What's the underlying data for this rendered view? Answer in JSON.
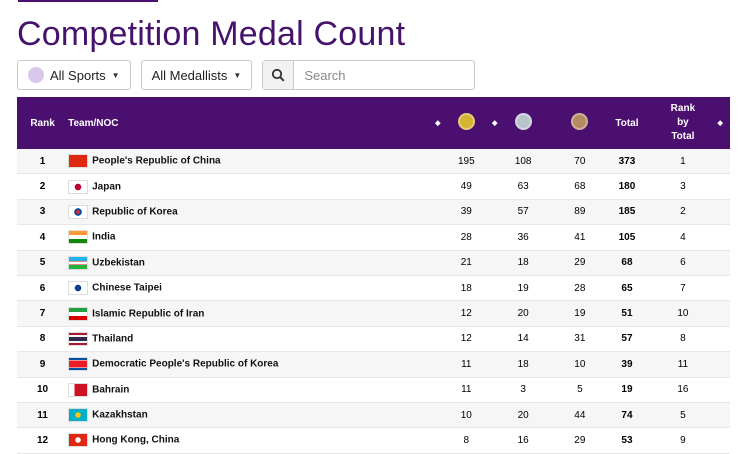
{
  "page": {
    "title": "Competition Medal Count"
  },
  "filters": {
    "sports_label": "All Sports",
    "medallists_label": "All Medallists",
    "search_placeholder": "Search"
  },
  "table": {
    "headers": {
      "rank": "Rank",
      "team": "Team/NOC",
      "total": "Total",
      "rank_by_total": [
        "Rank",
        "by",
        "Total"
      ]
    },
    "medal_colors": {
      "gold": "#d4b432",
      "silver": "#b9c3cc",
      "bronze": "#b48a63"
    },
    "header_bg": "#4a0f6f",
    "rows": [
      {
        "rank": "1",
        "team": "People's Republic of China",
        "flag": "china-flag-icon",
        "gold": "195",
        "silver": "108",
        "bronze": "70",
        "total": "373",
        "rank_by_total": "1"
      },
      {
        "rank": "2",
        "team": "Japan",
        "flag": "japan-flag-icon",
        "gold": "49",
        "silver": "63",
        "bronze": "68",
        "total": "180",
        "rank_by_total": "3"
      },
      {
        "rank": "3",
        "team": "Republic of Korea",
        "flag": "korea-flag-icon",
        "gold": "39",
        "silver": "57",
        "bronze": "89",
        "total": "185",
        "rank_by_total": "2"
      },
      {
        "rank": "4",
        "team": "India",
        "flag": "india-flag-icon",
        "gold": "28",
        "silver": "36",
        "bronze": "41",
        "total": "105",
        "rank_by_total": "4"
      },
      {
        "rank": "5",
        "team": "Uzbekistan",
        "flag": "uzbekistan-flag-icon",
        "gold": "21",
        "silver": "18",
        "bronze": "29",
        "total": "68",
        "rank_by_total": "6"
      },
      {
        "rank": "6",
        "team": "Chinese Taipei",
        "flag": "chinese-taipei-flag-icon",
        "gold": "18",
        "silver": "19",
        "bronze": "28",
        "total": "65",
        "rank_by_total": "7"
      },
      {
        "rank": "7",
        "team": "Islamic Republic of Iran",
        "flag": "iran-flag-icon",
        "gold": "12",
        "silver": "20",
        "bronze": "19",
        "total": "51",
        "rank_by_total": "10"
      },
      {
        "rank": "8",
        "team": "Thailand",
        "flag": "thailand-flag-icon",
        "gold": "12",
        "silver": "14",
        "bronze": "31",
        "total": "57",
        "rank_by_total": "8"
      },
      {
        "rank": "9",
        "team": "Democratic People's Republic of Korea",
        "flag": "dprk-flag-icon",
        "gold": "11",
        "silver": "18",
        "bronze": "10",
        "total": "39",
        "rank_by_total": "11"
      },
      {
        "rank": "10",
        "team": "Bahrain",
        "flag": "bahrain-flag-icon",
        "gold": "11",
        "silver": "3",
        "bronze": "5",
        "total": "19",
        "rank_by_total": "16"
      },
      {
        "rank": "11",
        "team": "Kazakhstan",
        "flag": "kazakhstan-flag-icon",
        "gold": "10",
        "silver": "20",
        "bronze": "44",
        "total": "74",
        "rank_by_total": "5"
      },
      {
        "rank": "12",
        "team": "Hong Kong, China",
        "flag": "hong-kong-flag-icon",
        "gold": "8",
        "silver": "16",
        "bronze": "29",
        "total": "53",
        "rank_by_total": "9"
      }
    ]
  }
}
